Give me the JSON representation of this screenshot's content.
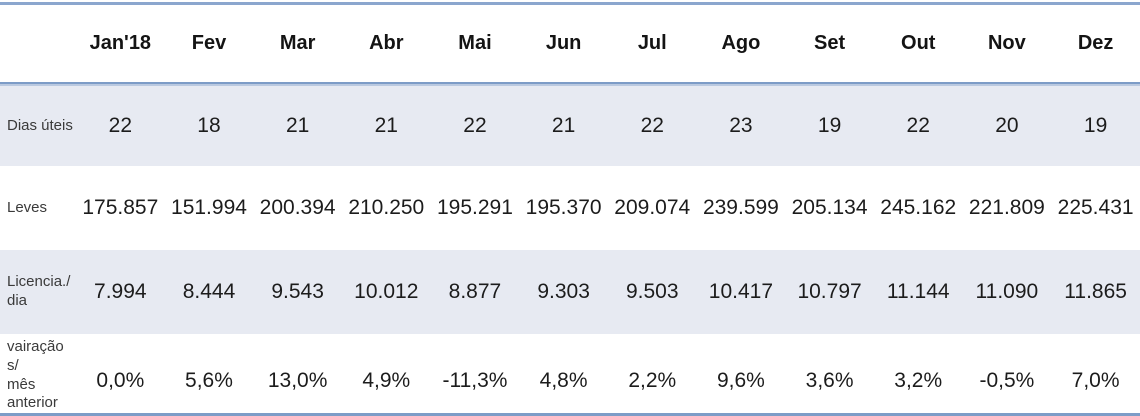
{
  "chart_data": {
    "type": "table",
    "columns": [
      "Jan'18",
      "Fev",
      "Mar",
      "Abr",
      "Mai",
      "Jun",
      "Jul",
      "Ago",
      "Set",
      "Out",
      "Nov",
      "Dez"
    ],
    "rows": [
      {
        "label": "Dias úteis",
        "values": [
          "22",
          "18",
          "21",
          "21",
          "22",
          "21",
          "22",
          "23",
          "19",
          "22",
          "20",
          "19"
        ]
      },
      {
        "label": "Leves",
        "values": [
          "175.857",
          "151.994",
          "200.394",
          "210.250",
          "195.291",
          "195.370",
          "209.074",
          "239.599",
          "205.134",
          "245.162",
          "221.809",
          "225.431"
        ]
      },
      {
        "label": "Licencia./\ndia",
        "values": [
          "7.994",
          "8.444",
          "9.543",
          "10.012",
          "8.877",
          "9.303",
          "9.503",
          "10.417",
          "10.797",
          "11.144",
          "11.090",
          "11.865"
        ]
      },
      {
        "label": "vairação s/\nmês\nanterior",
        "values": [
          "0,0%",
          "5,6%",
          "13,0%",
          "4,9%",
          "-11,3%",
          "4,8%",
          "2,2%",
          "9,6%",
          "3,6%",
          "3,2%",
          "-0,5%",
          "7,0%"
        ]
      }
    ]
  },
  "colors": {
    "band": "#e7eaf2",
    "top_line": "#8ba6ce",
    "header_border": "#7d9cc7",
    "header_border_light": "#bac9e0",
    "bottom_line": "#7d9cc7",
    "footer_strip": "#e2e6ee",
    "text_strong": "#141414",
    "text_main": "#1c1c1c",
    "text_label": "#3a3a3a"
  }
}
